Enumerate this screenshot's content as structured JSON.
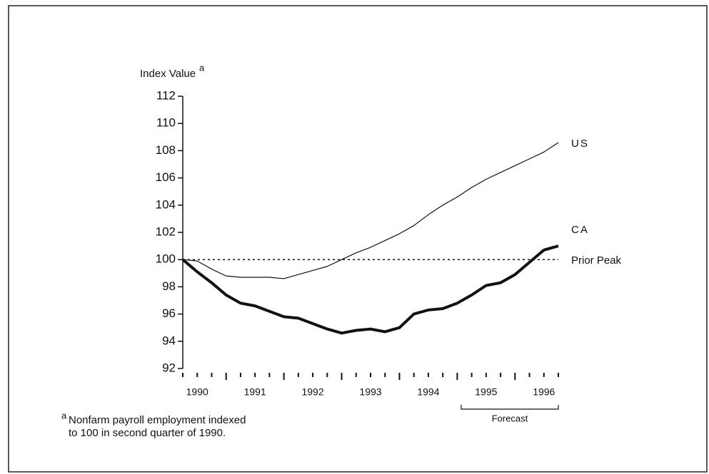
{
  "chart_data": {
    "type": "line",
    "y_label": "Index Value",
    "y_label_note": "a",
    "categories": [
      null,
      "1990",
      null,
      null,
      null,
      "1991",
      null,
      null,
      null,
      "1992",
      null,
      null,
      null,
      "1993",
      null,
      null,
      null,
      "1994",
      null,
      null,
      null,
      "1995",
      null,
      null,
      null,
      "1996",
      null
    ],
    "series": [
      {
        "name": "US",
        "color": "#111111",
        "width": 1.2,
        "values": [
          100,
          99.9,
          99.3,
          98.8,
          98.7,
          98.7,
          98.7,
          98.6,
          98.9,
          99.2,
          99.5,
          100.0,
          100.5,
          100.9,
          101.4,
          101.9,
          102.5,
          103.3,
          104.0,
          104.6,
          105.3,
          105.9,
          106.4,
          106.9,
          107.4,
          107.9,
          108.6
        ]
      },
      {
        "name": "CA",
        "color": "#111111",
        "width": 4,
        "values": [
          100,
          99.1,
          98.3,
          97.4,
          96.8,
          96.6,
          96.2,
          95.8,
          95.7,
          95.3,
          94.9,
          94.6,
          94.8,
          94.9,
          94.7,
          95.0,
          96.0,
          96.3,
          96.4,
          96.8,
          97.4,
          98.1,
          98.3,
          98.9,
          99.8,
          100.7,
          101.0
        ]
      }
    ],
    "reference_line": {
      "value": 100,
      "label": "Prior Peak"
    },
    "forecast_label": "Forecast",
    "footnote_mark": "a",
    "footnote": [
      "Nonfarm payroll employment indexed",
      "to 100 in second quarter of 1990."
    ],
    "ylim": [
      92,
      112
    ],
    "yticks": [
      92,
      94,
      96,
      98,
      100,
      102,
      104,
      106,
      108,
      110,
      112
    ]
  }
}
